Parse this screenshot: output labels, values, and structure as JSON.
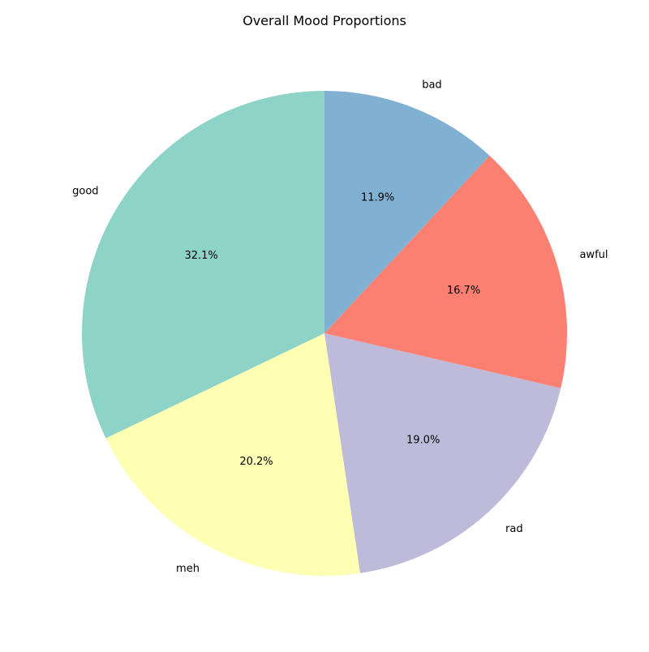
{
  "chart_data": {
    "type": "pie",
    "title": "Overall Mood Proportions",
    "start_angle_deg": 90,
    "direction": "counterclockwise",
    "slices": [
      {
        "label": "good",
        "value": 32.1,
        "pct_label": "32.1%",
        "color": "#8dd3c7"
      },
      {
        "label": "meh",
        "value": 20.2,
        "pct_label": "20.2%",
        "color": "#ffffb3"
      },
      {
        "label": "rad",
        "value": 19.0,
        "pct_label": "19.0%",
        "color": "#bebada"
      },
      {
        "label": "awful",
        "value": 16.7,
        "pct_label": "16.7%",
        "color": "#fb8072"
      },
      {
        "label": "bad",
        "value": 11.9,
        "pct_label": "11.9%",
        "color": "#80b1d3"
      }
    ]
  }
}
